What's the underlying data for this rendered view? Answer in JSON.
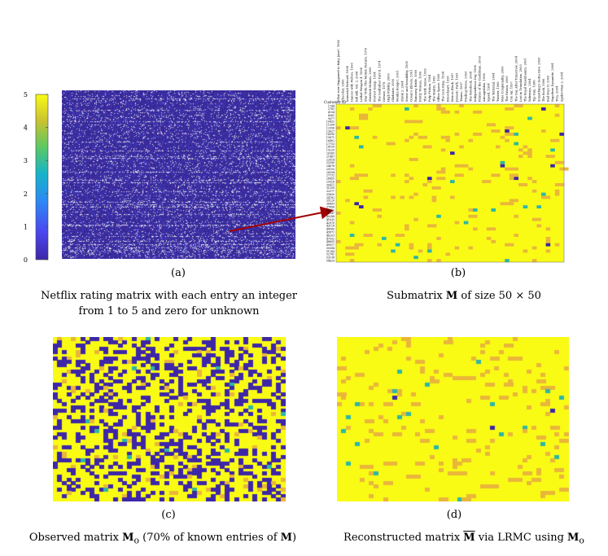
{
  "colorbar": {
    "ticks": [
      "0",
      "1",
      "2",
      "3",
      "4",
      "5"
    ],
    "stops": [
      "#3e26a8",
      "#4a47f0",
      "#2e87f5",
      "#16b4c9",
      "#5bc864",
      "#c9c230",
      "#f9fb15"
    ]
  },
  "panels": {
    "a": {
      "label": "(a)",
      "caption_lines": [
        "Netflix rating matrix with each entry an integer",
        "from 1 to 5 and zero for unknown"
      ]
    },
    "b": {
      "label": "(b)",
      "caption_prefix": "Submatrix ",
      "caption_symbol": "M",
      "caption_suffix": " of size 50 × 50",
      "header_corner": "Customer ID",
      "movie_titles": [
        "What ever Happened to Baby Jane?, 1962",
        "Chocolat, 2000",
        "Immortal Beloved, 1994",
        "Dances with Wolves, 1990",
        "Kill Bill: Vol. 2, 2004",
        "Lethal Weapon 4, 1998",
        "Star Trek: The Motion Picture, 1979",
        "Sherlock Holmes, 2009",
        "Forrest Gump, 1994",
        "The Godfather Part II, 1974",
        "Grease, 1978",
        "High Fidelity, 2000",
        "Gladiator, 2000",
        "Moulin Rouge!, 2001",
        "Shrek 2, 2004",
        "Sense and Sensibility, 1995",
        "Ocean's Eleven, 2001",
        "Runaway Bride, 1999",
        "Pretty Woman, 1990",
        "The Sixth Sense, 1999",
        "Pulp Fiction, 1994",
        "The Matrix, 1999",
        "Office Space, 1999",
        "The Lion King, 1994",
        "Braveheart, 1995",
        "Men in Black, 1997",
        "Jurassic Park, 1993",
        "Titanic, 1997",
        "Finding Nemo, 2003",
        "The Notebook, 2004",
        "Independence Day, 1996",
        "Pirates of the Caribbean, 2003",
        "Armageddon, 1998",
        "Speed, 1994",
        "The Terminal, 2004",
        "Twister, 1996",
        "Miss Congeniality, 2000",
        "The Patriot, 2000",
        "Con Air, 1997",
        "The Day After Tomorrow, 2004",
        "Lost in Translation, 2003",
        "The Royal Tenenbaums, 2001",
        "Sideways, 2004",
        "Top Gun, 1986",
        "Something's Gotta Give, 2003",
        "The Rock, 1996",
        "Bad Boys II, 2003",
        "Napoleon Dynamite, 2004",
        "Troy, 2004",
        "Spider-Man 2, 2004"
      ],
      "customer_ids": [
        "1744",
        "2781",
        "6104",
        "8561",
        "9077",
        "10432",
        "11508",
        "12956",
        "13627",
        "14390",
        "15871",
        "16402",
        "17753",
        "18109",
        "19220",
        "20365",
        "21487",
        "22814",
        "23390",
        "24678",
        "25103",
        "26594",
        "27732",
        "28455",
        "29018",
        "30411",
        "31209",
        "32577",
        "33650",
        "34782",
        "35120",
        "36493",
        "37806",
        "38912",
        "39547",
        "40288",
        "41635",
        "42970",
        "43118",
        "44560",
        "45871",
        "46203",
        "47932",
        "48655",
        "49017",
        "50384",
        "51269",
        "52741",
        "53198",
        "54620"
      ]
    },
    "c": {
      "label": "(c)",
      "caption_prefix": "Observed matrix ",
      "caption_symbol": "M",
      "caption_sub": "o",
      "caption_mid": " (70% of known entries of ",
      "caption_symbol2": "M",
      "caption_suffix": ")"
    },
    "d": {
      "label": "(d)",
      "caption_prefix": "Reconstructed matrix ",
      "caption_symbol": "M",
      "caption_mid": " via LRMC using ",
      "caption_symbol2": "M",
      "caption_sub": "o"
    }
  }
}
